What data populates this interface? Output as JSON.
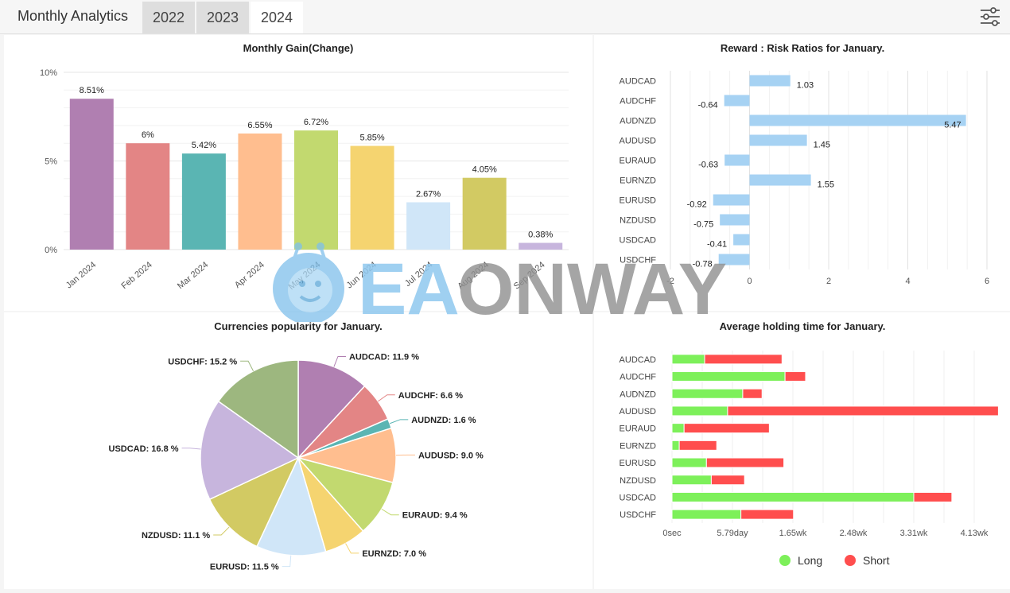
{
  "header": {
    "title": "Monthly Analytics",
    "tabs": [
      "2022",
      "2023",
      "2024"
    ],
    "active_tab": 2,
    "settings_icon": "sliders-icon"
  },
  "watermark": {
    "text": "EAONWAY"
  },
  "chart_data": [
    {
      "type": "bar",
      "title": "Monthly Gain(Change)",
      "categories": [
        "Jan 2024",
        "Feb 2024",
        "Mar 2024",
        "Apr 2024",
        "May 2024",
        "Jun 2024",
        "Jul 2024",
        "Aug 2024",
        "Sep 2024"
      ],
      "values": [
        8.51,
        6,
        5.42,
        6.55,
        6.72,
        5.85,
        2.67,
        4.05,
        0.38
      ],
      "labels": [
        "8.51%",
        "6%",
        "5.42%",
        "6.55%",
        "6.72%",
        "5.85%",
        "2.67%",
        "4.05%",
        "0.38%"
      ],
      "colors": [
        "#b07fb1",
        "#e38585",
        "#5ab5b3",
        "#ffbe8f",
        "#c2d96f",
        "#f5d470",
        "#d0e6f8",
        "#d2ca63",
        "#c7b5dd"
      ],
      "ylim": [
        0,
        10
      ],
      "yticks": [
        "0%",
        "5%",
        "10%"
      ],
      "grid": true
    },
    {
      "type": "bar",
      "orientation": "horizontal",
      "title": "Reward : Risk Ratios for January.",
      "categories": [
        "AUDCAD",
        "AUDCHF",
        "AUDNZD",
        "AUDUSD",
        "EURAUD",
        "EURNZD",
        "EURUSD",
        "NZDUSD",
        "USDCAD",
        "USDCHF"
      ],
      "values": [
        1.03,
        -0.64,
        5.47,
        1.45,
        -0.63,
        1.55,
        -0.92,
        -0.75,
        -0.41,
        -0.78
      ],
      "labels": [
        "1.03",
        "-0.64",
        "5.47",
        "1.45",
        "-0.63",
        "1.55",
        "-0.92",
        "-0.75",
        "-0.41",
        "-0.78"
      ],
      "color": "#a6d2f3",
      "xlim": [
        -2,
        6
      ],
      "xticks": [
        "-2",
        "0",
        "2",
        "4",
        "6"
      ],
      "grid": true
    },
    {
      "type": "pie",
      "title": "Currencies popularity for January.",
      "categories": [
        "AUDCAD",
        "AUDCHF",
        "AUDNZD",
        "AUDUSD",
        "EURAUD",
        "EURNZD",
        "EURUSD",
        "NZDUSD",
        "USDCAD",
        "USDCHF"
      ],
      "values": [
        11.9,
        6.6,
        1.6,
        9.0,
        9.4,
        7.0,
        11.5,
        11.1,
        16.8,
        15.2
      ],
      "labels": [
        "AUDCAD: 11.9 %",
        "AUDCHF: 6.6 %",
        "AUDNZD: 1.6 %",
        "AUDUSD: 9.0 %",
        "EURAUD: 9.4 %",
        "EURNZD: 7.0 %",
        "EURUSD: 11.5 %",
        "NZDUSD: 11.1 %",
        "USDCAD: 16.8 %",
        "USDCHF: 15.2 %"
      ],
      "colors": [
        "#b07fb1",
        "#e38585",
        "#5ab5b3",
        "#ffbe8f",
        "#c2d96f",
        "#f5d470",
        "#d0e6f8",
        "#d2ca63",
        "#c7b5dd",
        "#9db77f"
      ]
    },
    {
      "type": "bar",
      "orientation": "horizontal",
      "stacked": true,
      "title": "Average holding time for January.",
      "categories": [
        "AUDCAD",
        "AUDCHF",
        "AUDNZD",
        "AUDUSD",
        "EURAUD",
        "EURNZD",
        "EURUSD",
        "NZDUSD",
        "USDCAD",
        "USDCHF"
      ],
      "series": [
        {
          "name": "Long",
          "color": "#7df05a",
          "values": [
            0.54,
            1.87,
            1.17,
            0.92,
            0.2,
            0.12,
            0.57,
            0.65,
            4.0,
            1.14
          ]
        },
        {
          "name": "Short",
          "color": "#ff4e4e",
          "values": [
            1.28,
            0.34,
            0.32,
            4.48,
            1.41,
            0.62,
            1.28,
            0.55,
            0.63,
            0.87
          ]
        }
      ],
      "xticks": [
        "0sec",
        "5.79day",
        "1.65wk",
        "2.48wk",
        "3.31wk",
        "4.13wk"
      ],
      "legend_placement": "bottom",
      "grid": true
    }
  ]
}
